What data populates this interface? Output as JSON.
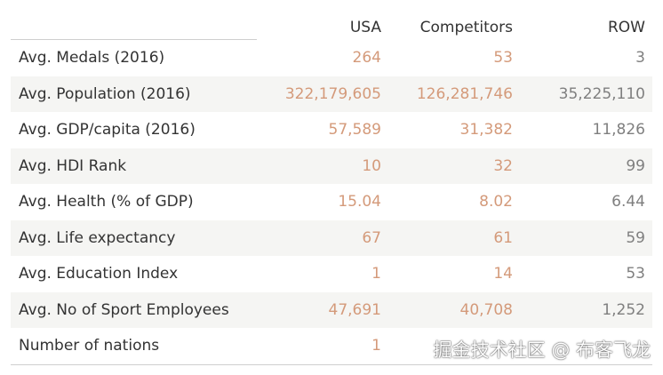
{
  "columns": [
    "USA",
    "Competitors",
    "ROW"
  ],
  "rows": [
    {
      "label": "Avg. Medals (2016)",
      "usa": "264",
      "competitors": "53",
      "row": "3"
    },
    {
      "label": "Avg. Population (2016)",
      "usa": "322,179,605",
      "competitors": "126,281,746",
      "row": "35,225,110"
    },
    {
      "label": "Avg. GDP/capita (2016)",
      "usa": "57,589",
      "competitors": "31,382",
      "row": "11,826"
    },
    {
      "label": "Avg. HDI Rank",
      "usa": "10",
      "competitors": "32",
      "row": "99"
    },
    {
      "label": "Avg. Health (% of GDP)",
      "usa": "15.04",
      "competitors": "8.02",
      "row": "6.44"
    },
    {
      "label": "Avg. Life expectancy",
      "usa": "67",
      "competitors": "61",
      "row": "59"
    },
    {
      "label": "Avg. Education Index",
      "usa": "1",
      "competitors": "14",
      "row": "53"
    },
    {
      "label": "Avg. No of Sport Employees",
      "usa": "47,691",
      "competitors": "40,708",
      "row": "1,252"
    },
    {
      "label": "Number of nations",
      "usa": "1",
      "competitors": "",
      "row": ""
    }
  ],
  "watermark": "掘金技术社区 @ 布客飞龙",
  "colors": {
    "usa_competitors_value": "#d49a7a",
    "row_value": "#7f7f7f",
    "label": "#333333",
    "alt_row_bg": "#f5f5f3"
  }
}
